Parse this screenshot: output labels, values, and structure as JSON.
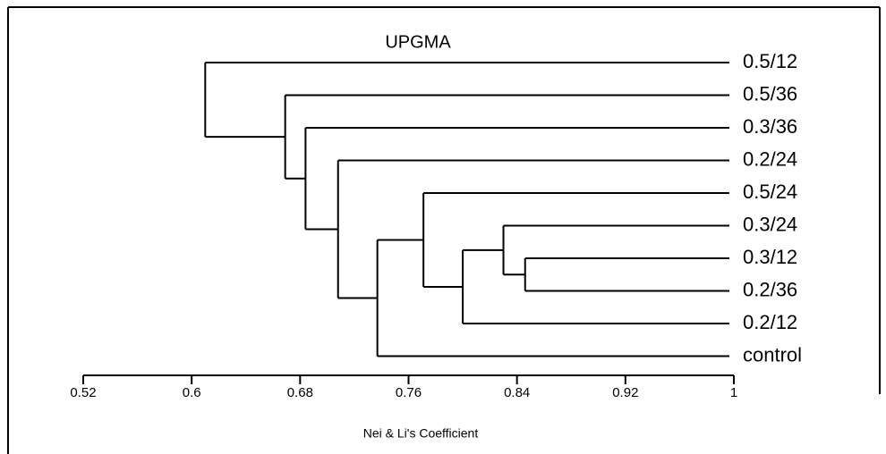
{
  "chart_data": {
    "type": "dendrogram",
    "title": "UPGMA",
    "x_label": "Nei & Li's Coefficient",
    "leaves": [
      "0.5/12",
      "0.5/36",
      "0.3/36",
      "0.2/24",
      "0.5/24",
      "0.3/24",
      "0.3/12",
      "0.2/36",
      "0.2/12",
      "control"
    ],
    "merges": [
      {
        "children": [
          6,
          7
        ],
        "height": 0.846
      },
      {
        "children": [
          5,
          10
        ],
        "height": 0.83
      },
      {
        "children": [
          11,
          8
        ],
        "height": 0.8
      },
      {
        "children": [
          4,
          12
        ],
        "height": 0.771
      },
      {
        "children": [
          13,
          9
        ],
        "height": 0.737
      },
      {
        "children": [
          3,
          14
        ],
        "height": 0.708
      },
      {
        "children": [
          2,
          15
        ],
        "height": 0.684
      },
      {
        "children": [
          1,
          16
        ],
        "height": 0.669
      },
      {
        "children": [
          0,
          17
        ],
        "height": 0.61
      }
    ],
    "xlim": [
      0.52,
      1
    ],
    "xticks": [
      0.52,
      0.6,
      0.68,
      0.76,
      0.84,
      0.92,
      1
    ],
    "color": "#000000"
  }
}
